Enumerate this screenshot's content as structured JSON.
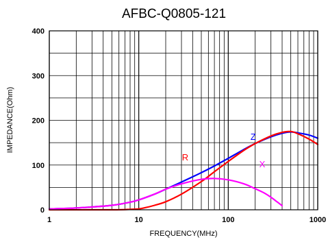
{
  "chart_data": {
    "type": "line",
    "title": "AFBC-Q0805-121",
    "xlabel": "FREQUENCY(MHz)",
    "ylabel": "IMPEDANCE(Ohm)",
    "x_scale": "log",
    "xlim": [
      1,
      1000
    ],
    "ylim": [
      0,
      400
    ],
    "grid": true,
    "x_ticks": [
      1,
      10,
      100,
      1000
    ],
    "x_tick_labels": [
      "1",
      "10",
      "100",
      "1000"
    ],
    "y_ticks": [
      0,
      100,
      200,
      300,
      400
    ],
    "y_tick_labels": [
      "0",
      "100",
      "200",
      "300",
      "400"
    ],
    "series": [
      {
        "name": "Z",
        "color": "#0000ff",
        "x": [
          1,
          2,
          5,
          8,
          10,
          15,
          20,
          30,
          50,
          70,
          100,
          150,
          200,
          300,
          400,
          500,
          600,
          800,
          1000
        ],
        "y": [
          2,
          4,
          10,
          17,
          22,
          35,
          46,
          62,
          83,
          98,
          115,
          135,
          148,
          163,
          171,
          174,
          172,
          167,
          160
        ]
      },
      {
        "name": "R",
        "color": "#ff0000",
        "x": [
          1,
          5,
          8,
          10,
          12,
          15,
          20,
          30,
          50,
          70,
          100,
          150,
          200,
          300,
          400,
          500,
          600,
          800,
          1000
        ],
        "y": [
          0,
          0,
          1,
          2,
          5,
          10,
          18,
          35,
          63,
          85,
          108,
          133,
          148,
          165,
          173,
          175,
          170,
          158,
          146
        ]
      },
      {
        "name": "X",
        "color": "#ff00ff",
        "x": [
          1,
          2,
          5,
          8,
          10,
          15,
          20,
          30,
          50,
          70,
          100,
          150,
          200,
          250,
          300,
          350,
          400
        ],
        "y": [
          2,
          4,
          10,
          17,
          22,
          35,
          46,
          58,
          68,
          70,
          67,
          58,
          47,
          38,
          28,
          18,
          9
        ]
      }
    ]
  }
}
